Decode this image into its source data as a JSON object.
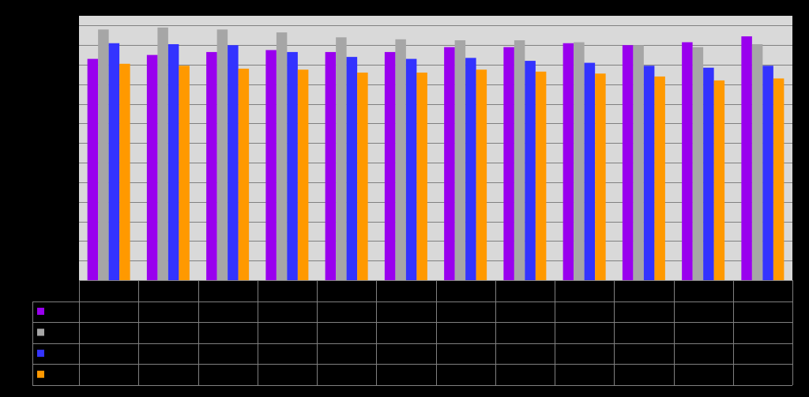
{
  "chart_data": {
    "type": "bar",
    "title": "",
    "xlabel": "",
    "ylabel": "",
    "categories": [
      "",
      "",
      "",
      "",
      "",
      "",
      "",
      "",
      "",
      "",
      "",
      ""
    ],
    "ylim": [
      0,
      13.5
    ],
    "ygrid_step": 1,
    "grid": true,
    "legend": "data-table-left",
    "colors": {
      "background": "#000000",
      "plot_area": "#d9d9d9",
      "gridline": "#808080",
      "table_line": "#808080"
    },
    "series": [
      {
        "color": "#9900ee",
        "values": [
          11.3,
          11.5,
          11.65,
          11.75,
          11.65,
          11.65,
          11.9,
          11.9,
          12.1,
          12.0,
          12.15,
          12.45
        ]
      },
      {
        "color": "#a6a6a6",
        "values": [
          12.8,
          12.9,
          12.8,
          12.65,
          12.4,
          12.3,
          12.25,
          12.25,
          12.15,
          12.0,
          11.9,
          12.05
        ]
      },
      {
        "color": "#3333ff",
        "values": [
          12.1,
          12.05,
          12.0,
          11.65,
          11.4,
          11.3,
          11.35,
          11.2,
          11.1,
          10.95,
          10.85,
          10.95
        ]
      },
      {
        "color": "#ff9900",
        "values": [
          11.05,
          10.95,
          10.8,
          10.75,
          10.6,
          10.6,
          10.75,
          10.65,
          10.55,
          10.4,
          10.2,
          10.3
        ]
      }
    ]
  }
}
